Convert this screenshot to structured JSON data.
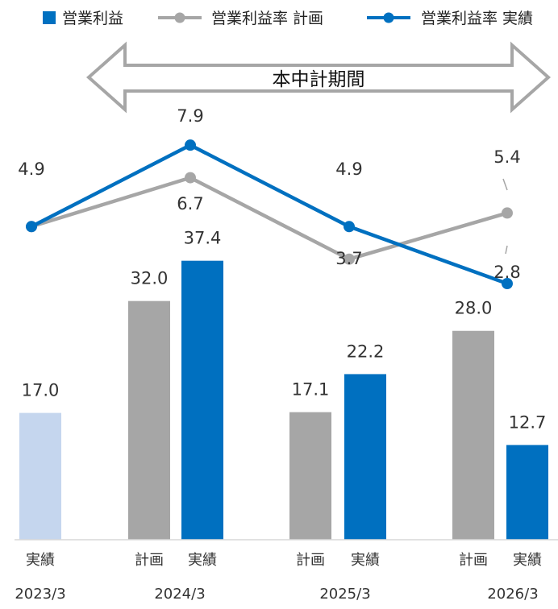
{
  "chart_data": {
    "type": "bar",
    "legend": {
      "position": "top",
      "items": [
        {
          "label": "営業利益",
          "kind": "bar",
          "color": "#0070C0"
        },
        {
          "label": "営業利益率 計画",
          "kind": "line",
          "color": "#A6A6A6"
        },
        {
          "label": "営業利益率 実績",
          "kind": "line",
          "color": "#0070C0"
        }
      ]
    },
    "banner": {
      "label": "本中計期間"
    },
    "groups": [
      {
        "year": "2023/3"
      },
      {
        "year": "2024/3"
      },
      {
        "year": "2025/3"
      },
      {
        "year": "2026/3"
      }
    ],
    "bars": [
      {
        "group": 0,
        "slot": "single",
        "category": "実績",
        "value": 17.0,
        "label": "17.0",
        "color": "#C5D6EE"
      },
      {
        "group": 1,
        "slot": "left",
        "category": "計画",
        "value": 32.0,
        "label": "32.0",
        "color": "#A6A6A6"
      },
      {
        "group": 1,
        "slot": "right",
        "category": "実績",
        "value": 37.4,
        "label": "37.4",
        "color": "#0070C0"
      },
      {
        "group": 2,
        "slot": "left",
        "category": "計画",
        "value": 17.1,
        "label": "17.1",
        "color": "#A6A6A6"
      },
      {
        "group": 2,
        "slot": "right",
        "category": "実績",
        "value": 22.2,
        "label": "22.2",
        "color": "#0070C0"
      },
      {
        "group": 3,
        "slot": "left",
        "category": "計画",
        "value": 28.0,
        "label": "28.0",
        "color": "#A6A6A6"
      },
      {
        "group": 3,
        "slot": "right",
        "category": "実績",
        "value": 12.7,
        "label": "12.7",
        "color": "#0070C0"
      }
    ],
    "series": [
      {
        "name": "営業利益率 計画",
        "color": "#A6A6A6",
        "values": [
          4.9,
          6.7,
          3.7,
          5.4
        ],
        "labels": [
          "",
          "6.7",
          "3.7",
          "5.4"
        ]
      },
      {
        "name": "営業利益率 実績",
        "color": "#0070C0",
        "values": [
          4.9,
          7.9,
          4.9,
          2.8
        ],
        "labels": [
          "4.9",
          "7.9",
          "4.9",
          "2.8"
        ]
      }
    ],
    "bar_ylim": [
      0,
      45
    ],
    "line_ylim": [
      0,
      10
    ],
    "grid": false
  }
}
